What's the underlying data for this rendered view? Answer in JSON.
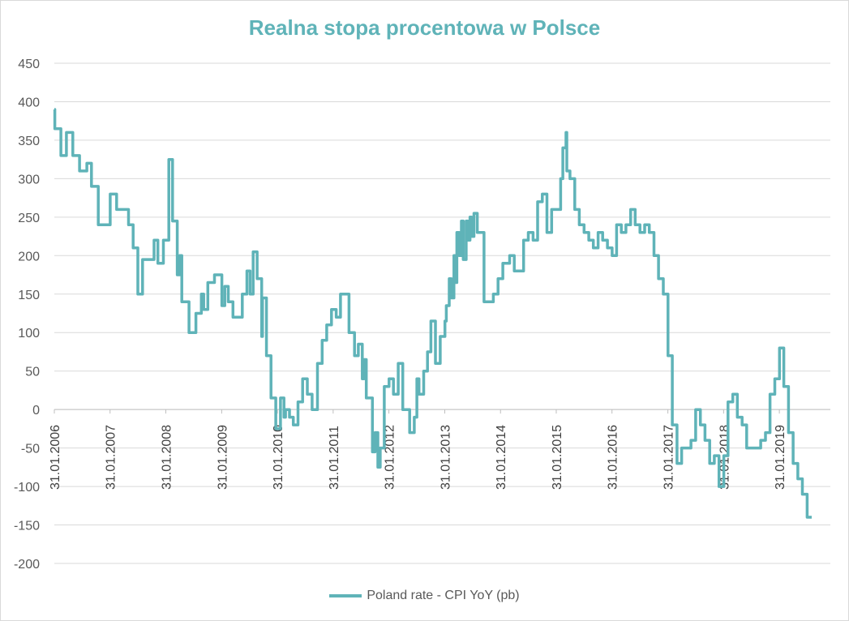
{
  "chart_data": {
    "type": "line",
    "title": "Realna stopa procentowa w Polsce",
    "xlabel": "",
    "ylabel": "",
    "ylim": [
      -200,
      450
    ],
    "yticks": [
      450,
      400,
      350,
      300,
      250,
      200,
      150,
      100,
      50,
      0,
      -50,
      -100,
      -150,
      -200
    ],
    "xlim": [
      "2006-01-31",
      "2019-12-31"
    ],
    "xtick_labels": [
      "31.01.2006",
      "31.01.2007",
      "31.01.2008",
      "31.01.2009",
      "31.01.2010",
      "31.01.2011",
      "31.01.2012",
      "31.01.2013",
      "31.01.2014",
      "31.01.2015",
      "31.01.2016",
      "31.01.2017",
      "31.01.2018",
      "31.01.2019"
    ],
    "grid": "horizontal",
    "legend_position": "bottom",
    "color": "#5fb3b8",
    "series": [
      {
        "name": "Poland rate - CPI YoY (pb)",
        "step": true,
        "points": [
          [
            "2006-01-31",
            390
          ],
          [
            "2006-02-03",
            365
          ],
          [
            "2006-03-15",
            330
          ],
          [
            "2006-04-20",
            360
          ],
          [
            "2006-06-01",
            330
          ],
          [
            "2006-07-15",
            310
          ],
          [
            "2006-09-01",
            320
          ],
          [
            "2006-10-01",
            290
          ],
          [
            "2006-11-15",
            240
          ],
          [
            "2007-02-01",
            280
          ],
          [
            "2007-03-15",
            260
          ],
          [
            "2007-06-01",
            240
          ],
          [
            "2007-07-01",
            210
          ],
          [
            "2007-08-01",
            150
          ],
          [
            "2007-09-01",
            195
          ],
          [
            "2007-11-15",
            220
          ],
          [
            "2007-12-10",
            190
          ],
          [
            "2008-01-15",
            220
          ],
          [
            "2008-02-20",
            325
          ],
          [
            "2008-03-15",
            245
          ],
          [
            "2008-04-15",
            175
          ],
          [
            "2008-05-01",
            200
          ],
          [
            "2008-05-15",
            140
          ],
          [
            "2008-07-01",
            100
          ],
          [
            "2008-08-15",
            125
          ],
          [
            "2008-09-20",
            150
          ],
          [
            "2008-10-05",
            130
          ],
          [
            "2008-11-01",
            165
          ],
          [
            "2008-12-15",
            175
          ],
          [
            "2009-02-01",
            135
          ],
          [
            "2009-02-20",
            160
          ],
          [
            "2009-03-15",
            140
          ],
          [
            "2009-04-15",
            120
          ],
          [
            "2009-06-15",
            150
          ],
          [
            "2009-07-15",
            180
          ],
          [
            "2009-08-05",
            150
          ],
          [
            "2009-08-25",
            205
          ],
          [
            "2009-09-20",
            170
          ],
          [
            "2009-10-20",
            95
          ],
          [
            "2009-10-25",
            145
          ],
          [
            "2009-11-20",
            70
          ],
          [
            "2009-12-20",
            15
          ],
          [
            "2010-01-20",
            -25
          ],
          [
            "2010-02-20",
            15
          ],
          [
            "2010-03-15",
            -10
          ],
          [
            "2010-03-25",
            0
          ],
          [
            "2010-04-20",
            -10
          ],
          [
            "2010-05-15",
            -20
          ],
          [
            "2010-06-15",
            10
          ],
          [
            "2010-07-15",
            40
          ],
          [
            "2010-08-15",
            20
          ],
          [
            "2010-09-15",
            0
          ],
          [
            "2010-10-20",
            60
          ],
          [
            "2010-11-20",
            90
          ],
          [
            "2010-12-20",
            110
          ],
          [
            "2011-01-20",
            130
          ],
          [
            "2011-02-20",
            120
          ],
          [
            "2011-03-20",
            150
          ],
          [
            "2011-05-15",
            100
          ],
          [
            "2011-06-20",
            70
          ],
          [
            "2011-07-15",
            85
          ],
          [
            "2011-08-10",
            40
          ],
          [
            "2011-08-20",
            65
          ],
          [
            "2011-09-05",
            15
          ],
          [
            "2011-10-15",
            -55
          ],
          [
            "2011-11-01",
            -30
          ],
          [
            "2011-11-20",
            -75
          ],
          [
            "2011-12-05",
            -50
          ],
          [
            "2012-01-01",
            30
          ],
          [
            "2012-02-01",
            40
          ],
          [
            "2012-03-01",
            20
          ],
          [
            "2012-04-01",
            60
          ],
          [
            "2012-05-01",
            0
          ],
          [
            "2012-06-15",
            -30
          ],
          [
            "2012-07-15",
            -10
          ],
          [
            "2012-08-01",
            40
          ],
          [
            "2012-08-15",
            20
          ],
          [
            "2012-09-15",
            50
          ],
          [
            "2012-10-10",
            75
          ],
          [
            "2012-11-01",
            115
          ],
          [
            "2012-12-01",
            60
          ],
          [
            "2013-01-01",
            95
          ],
          [
            "2013-02-01",
            115
          ],
          [
            "2013-02-10",
            135
          ],
          [
            "2013-03-01",
            170
          ],
          [
            "2013-03-15",
            145
          ],
          [
            "2013-04-01",
            200
          ],
          [
            "2013-04-10",
            165
          ],
          [
            "2013-04-20",
            230
          ],
          [
            "2013-05-05",
            200
          ],
          [
            "2013-05-20",
            245
          ],
          [
            "2013-06-01",
            195
          ],
          [
            "2013-06-20",
            245
          ],
          [
            "2013-07-01",
            220
          ],
          [
            "2013-07-15",
            250
          ],
          [
            "2013-07-25",
            225
          ],
          [
            "2013-08-10",
            255
          ],
          [
            "2013-09-01",
            230
          ],
          [
            "2013-10-15",
            140
          ],
          [
            "2013-12-15",
            150
          ],
          [
            "2014-01-15",
            170
          ],
          [
            "2014-02-15",
            190
          ],
          [
            "2014-04-01",
            200
          ],
          [
            "2014-05-01",
            180
          ],
          [
            "2014-07-01",
            220
          ],
          [
            "2014-08-01",
            230
          ],
          [
            "2014-09-01",
            220
          ],
          [
            "2014-10-01",
            270
          ],
          [
            "2014-11-01",
            280
          ],
          [
            "2014-12-01",
            230
          ],
          [
            "2015-01-01",
            260
          ],
          [
            "2015-03-01",
            300
          ],
          [
            "2015-03-15",
            340
          ],
          [
            "2015-04-05",
            360
          ],
          [
            "2015-04-10",
            310
          ],
          [
            "2015-05-01",
            300
          ],
          [
            "2015-06-01",
            260
          ],
          [
            "2015-07-01",
            240
          ],
          [
            "2015-08-01",
            230
          ],
          [
            "2015-09-01",
            220
          ],
          [
            "2015-10-01",
            210
          ],
          [
            "2015-11-01",
            230
          ],
          [
            "2015-12-01",
            220
          ],
          [
            "2016-01-01",
            210
          ],
          [
            "2016-02-01",
            200
          ],
          [
            "2016-03-01",
            240
          ],
          [
            "2016-04-01",
            230
          ],
          [
            "2016-05-01",
            240
          ],
          [
            "2016-06-01",
            260
          ],
          [
            "2016-07-01",
            240
          ],
          [
            "2016-08-01",
            230
          ],
          [
            "2016-09-01",
            240
          ],
          [
            "2016-10-01",
            230
          ],
          [
            "2016-11-01",
            200
          ],
          [
            "2016-12-01",
            170
          ],
          [
            "2017-01-01",
            150
          ],
          [
            "2017-02-01",
            70
          ],
          [
            "2017-03-01",
            -20
          ],
          [
            "2017-04-01",
            -70
          ],
          [
            "2017-05-01",
            -50
          ],
          [
            "2017-07-01",
            -40
          ],
          [
            "2017-08-01",
            0
          ],
          [
            "2017-09-01",
            -20
          ],
          [
            "2017-10-01",
            -40
          ],
          [
            "2017-11-01",
            -70
          ],
          [
            "2017-12-01",
            -60
          ],
          [
            "2018-01-01",
            -100
          ],
          [
            "2018-02-01",
            -60
          ],
          [
            "2018-03-01",
            10
          ],
          [
            "2018-04-01",
            20
          ],
          [
            "2018-05-01",
            -10
          ],
          [
            "2018-06-01",
            -20
          ],
          [
            "2018-07-01",
            -50
          ],
          [
            "2018-10-01",
            -40
          ],
          [
            "2018-11-01",
            -30
          ],
          [
            "2018-12-01",
            20
          ],
          [
            "2019-01-01",
            40
          ],
          [
            "2019-02-01",
            80
          ],
          [
            "2019-03-01",
            30
          ],
          [
            "2019-04-01",
            -30
          ],
          [
            "2019-05-01",
            -70
          ],
          [
            "2019-06-01",
            -90
          ],
          [
            "2019-07-01",
            -110
          ],
          [
            "2019-08-01",
            -140
          ],
          [
            "2019-08-31",
            -140
          ]
        ]
      }
    ]
  }
}
